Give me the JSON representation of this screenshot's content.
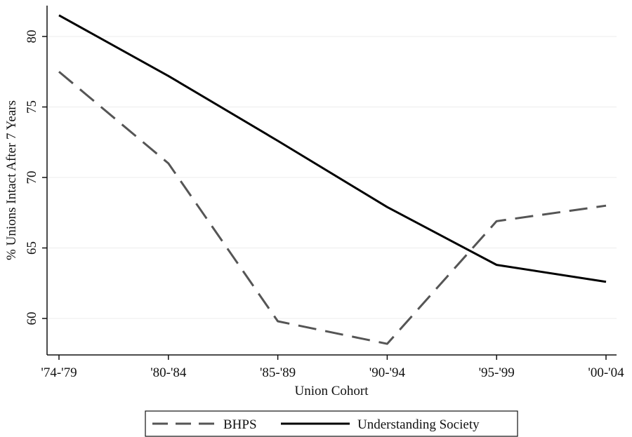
{
  "chart_data": {
    "type": "line",
    "title": "",
    "xlabel": "Union Cohort",
    "ylabel": "% Unions Intact After 7 Years",
    "categories": [
      "'74-'79",
      "'80-'84",
      "'85-'89",
      "'90-'94",
      "'95-'99",
      "'00-'04"
    ],
    "ylim": [
      57.5,
      82.5
    ],
    "yticks": [
      60,
      65,
      70,
      75,
      80
    ],
    "grid": true,
    "legend_position": "bottom",
    "series": [
      {
        "name": "BHPS",
        "style": "dashed",
        "color": "#555555",
        "values": [
          77.5,
          71.0,
          59.8,
          58.2,
          66.9,
          68.0
        ]
      },
      {
        "name": "Understanding Society",
        "style": "solid",
        "color": "#000000",
        "values": [
          81.5,
          77.2,
          72.6,
          67.9,
          63.8,
          62.6
        ]
      }
    ]
  }
}
